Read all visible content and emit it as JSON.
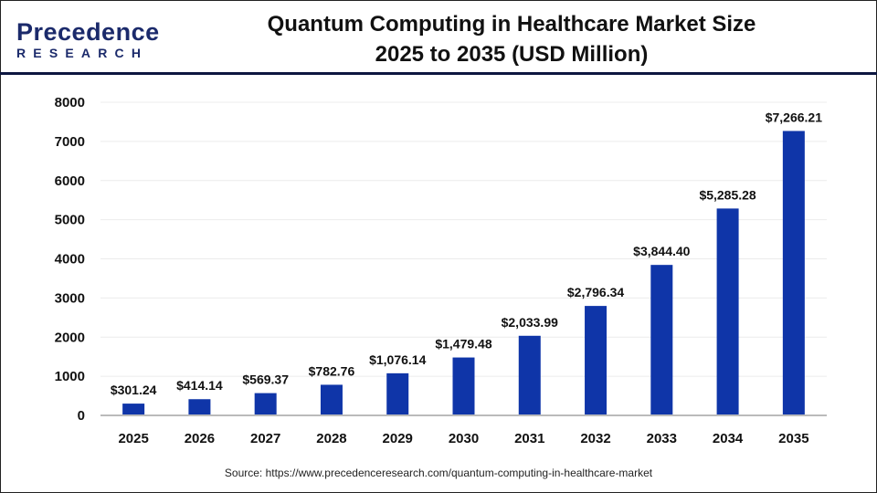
{
  "logo": {
    "line1a": "Precedence",
    "line2": "RESEARCH"
  },
  "title_line1": "Quantum Computing in Healthcare Market Size",
  "title_line2": "2025 to 2035 (USD Million)",
  "source": "Source: https://www.precedenceresearch.com/quantum-computing-in-healthcare-market",
  "chart_data": {
    "type": "bar",
    "title": "Quantum Computing in Healthcare Market Size 2025 to 2035 (USD Million)",
    "categories": [
      "2025",
      "2026",
      "2027",
      "2028",
      "2029",
      "2030",
      "2031",
      "2032",
      "2033",
      "2034",
      "2035"
    ],
    "values": [
      301.24,
      414.14,
      569.37,
      782.76,
      1076.14,
      1479.48,
      2033.99,
      2796.34,
      3844.4,
      5285.28,
      7266.21
    ],
    "data_labels": [
      "$301.24",
      "$414.14",
      "$569.37",
      "$782.76",
      "$1,076.14",
      "$1,479.48",
      "$2,033.99",
      "$2,796.34",
      "$3,844.40",
      "$5,285.28",
      "$7,266.21"
    ],
    "ylim": [
      0,
      8000
    ],
    "yticks": [
      0,
      1000,
      2000,
      3000,
      4000,
      5000,
      6000,
      7000,
      8000
    ],
    "grid": true,
    "bar_color": "#0f35a8"
  }
}
